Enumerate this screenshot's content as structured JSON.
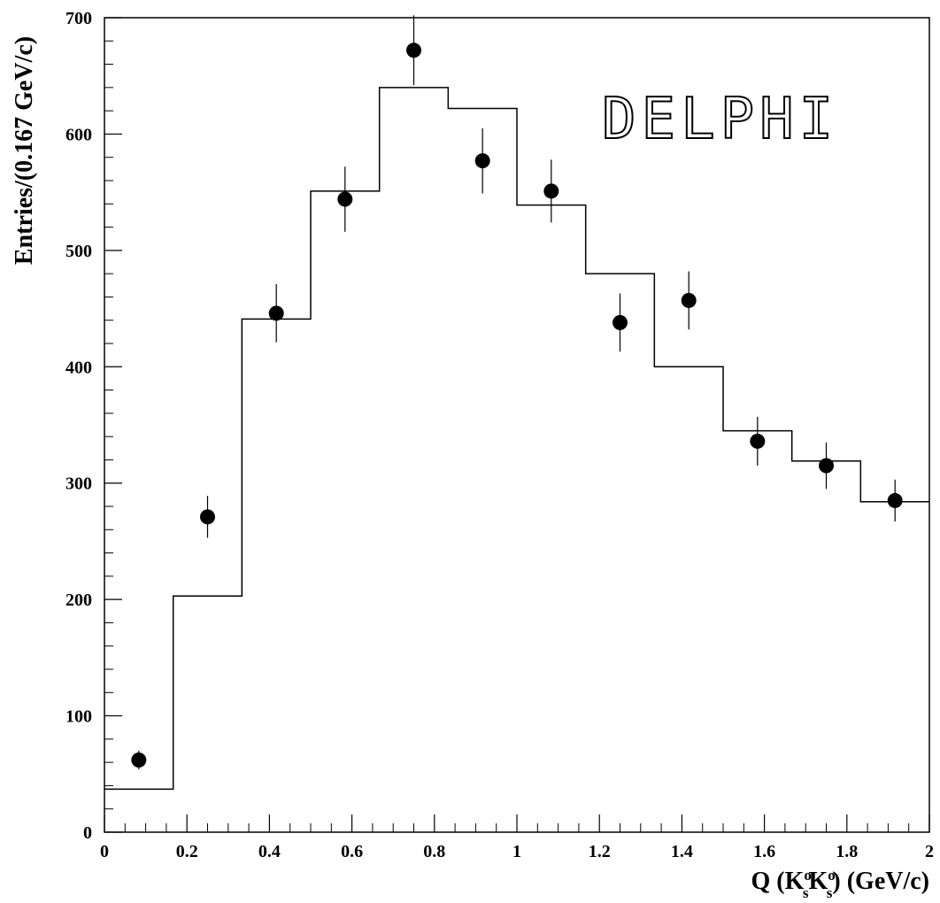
{
  "chart_data": {
    "type": "scatter",
    "logo": "DELPHI",
    "xlabel": {
      "main": "Q (K",
      "sup1": "o",
      "sub1": "s",
      "k2": "K",
      "sup2": "o",
      "sub2": "s",
      "close": ")  (GeV/c)"
    },
    "ylabel": "Entries/(0.167 GeV/c)",
    "xlim": [
      0,
      2
    ],
    "ylim": [
      0,
      700
    ],
    "x_ticks": [
      0,
      0.2,
      0.4,
      0.6,
      0.8,
      1,
      1.2,
      1.4,
      1.6,
      1.8,
      2
    ],
    "x_tick_labels": [
      "0",
      "0.2",
      "0.4",
      "0.6",
      "0.8",
      "1",
      "1.2",
      "1.4",
      "1.6",
      "1.8",
      "2"
    ],
    "y_ticks": [
      0,
      100,
      200,
      300,
      400,
      500,
      600,
      700
    ],
    "y_tick_labels": [
      "0",
      "100",
      "200",
      "300",
      "400",
      "500",
      "600",
      "700"
    ],
    "histogram": {
      "bin_edges": [
        0,
        0.1667,
        0.3333,
        0.5,
        0.6667,
        0.8333,
        1.0,
        1.1667,
        1.3333,
        1.5,
        1.6667,
        1.8333,
        2.0
      ],
      "values": [
        37,
        203,
        441,
        551,
        640,
        622,
        539,
        480,
        400,
        345,
        319,
        284
      ]
    },
    "points": {
      "x": [
        0.0833,
        0.25,
        0.4167,
        0.5833,
        0.75,
        0.9167,
        1.0833,
        1.25,
        1.4167,
        1.5833,
        1.75,
        1.9167
      ],
      "y": [
        62,
        271,
        446,
        544,
        672,
        577,
        551,
        438,
        457,
        336,
        315,
        285
      ],
      "err": [
        8,
        18,
        25,
        28,
        30,
        28,
        27,
        25,
        25,
        21,
        20,
        18
      ]
    },
    "grid": false,
    "legend": "none"
  }
}
